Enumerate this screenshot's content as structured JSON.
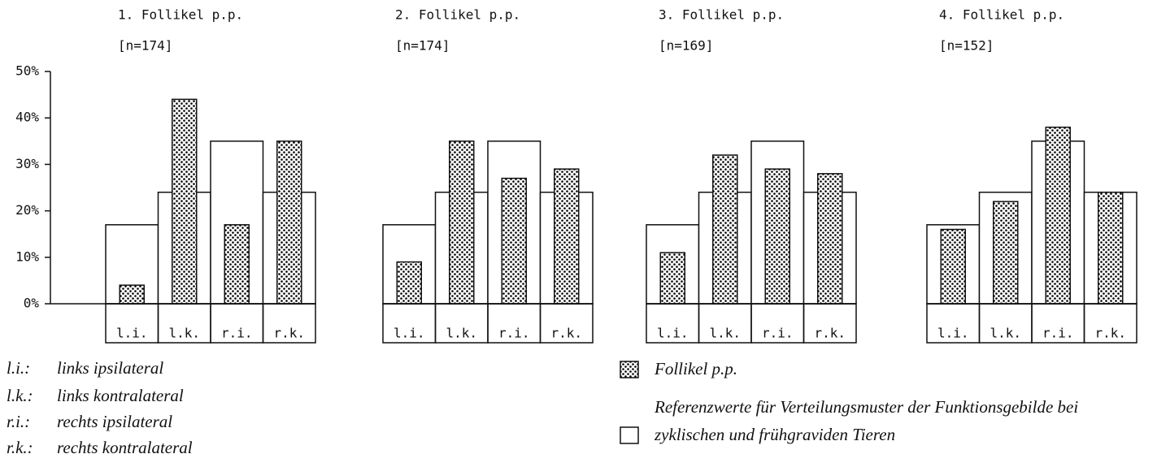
{
  "chart_data": [
    {
      "type": "bar",
      "title": "1. Follikel p.p.",
      "subtitle": "[n=174]",
      "categories": [
        "l.i.",
        "l.k.",
        "r.i.",
        "r.k."
      ],
      "ylim": [
        0,
        50
      ],
      "yticks": [
        {
          "value": 0,
          "label": "0%"
        },
        {
          "value": 10,
          "label": "10%"
        },
        {
          "value": 20,
          "label": "20%"
        },
        {
          "value": 30,
          "label": "30%"
        },
        {
          "value": 40,
          "label": "40%"
        },
        {
          "value": 50,
          "label": "50%"
        }
      ],
      "series": [
        {
          "name": "Follikel p.p.",
          "color": "#000000",
          "values": [
            4,
            44,
            17,
            35
          ]
        },
        {
          "name": "Referenzwerte für Verteilungsmuster der Funktionsgebilde bei zyklischen und frühgraviden Tieren",
          "color": "#ffffff",
          "values": [
            17,
            24,
            35,
            24
          ]
        }
      ]
    },
    {
      "type": "bar",
      "title": "2. Follikel p.p.",
      "subtitle": "[n=174]",
      "categories": [
        "l.i.",
        "l.k.",
        "r.i.",
        "r.k."
      ],
      "ylim": [
        0,
        50
      ],
      "series": [
        {
          "color": "#000000",
          "values": [
            9,
            35,
            27,
            29
          ]
        },
        {
          "color": "#ffffff",
          "values": [
            17,
            24,
            35,
            24
          ]
        }
      ]
    },
    {
      "type": "bar",
      "title": "3. Follikel p.p.",
      "subtitle": "[n=169]",
      "categories": [
        "l.i.",
        "l.k.",
        "r.i.",
        "r.k."
      ],
      "ylim": [
        0,
        50
      ],
      "series": [
        {
          "color": "#000000",
          "values": [
            11,
            32,
            29,
            28
          ]
        },
        {
          "color": "#ffffff",
          "values": [
            17,
            24,
            35,
            24
          ]
        }
      ]
    },
    {
      "type": "bar",
      "title": "4. Follikel p.p.",
      "subtitle": "[n=152]",
      "categories": [
        "l.i.",
        "l.k.",
        "r.i.",
        "r.k."
      ],
      "ylim": [
        0,
        50
      ],
      "series": [
        {
          "color": "#000000",
          "values": [
            16,
            22,
            38,
            24
          ]
        },
        {
          "color": "#ffffff",
          "values": [
            17,
            24,
            35,
            24
          ]
        }
      ]
    }
  ],
  "key": [
    {
      "abbr": "l.i.:",
      "text": "links ipsilateral"
    },
    {
      "abbr": "l.k.:",
      "text": "links kontralateral"
    },
    {
      "abbr": "r.i.:",
      "text": "rechts ipsilateral"
    },
    {
      "abbr": "r.k.:",
      "text": "rechts kontralateral"
    }
  ]
}
